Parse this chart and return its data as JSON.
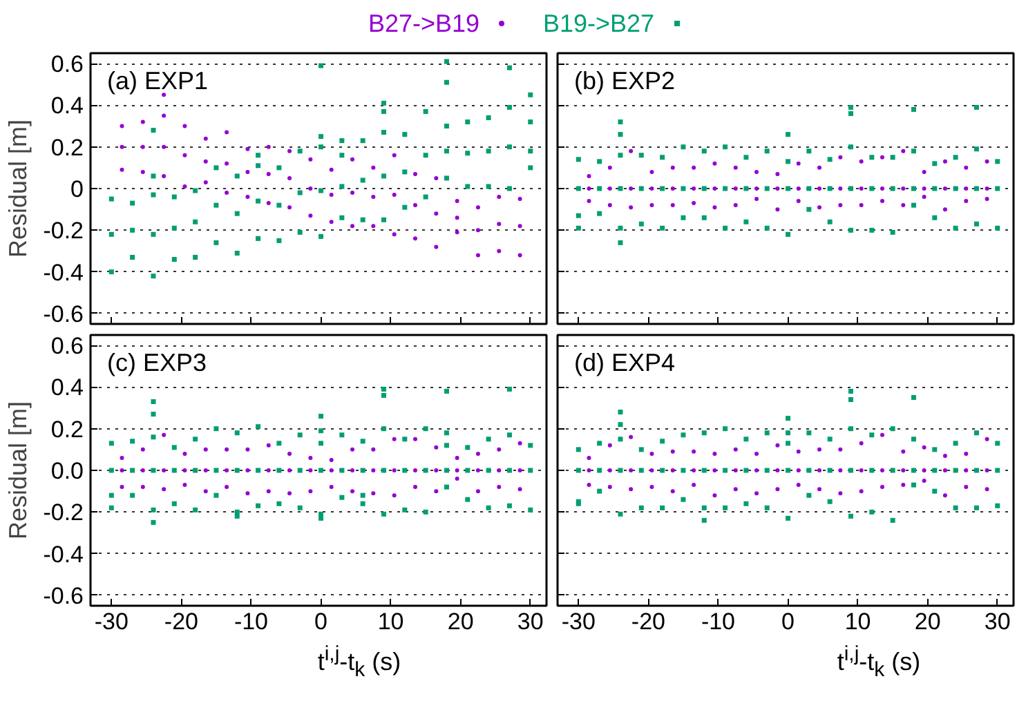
{
  "chart_data": [
    {
      "type": "scatter",
      "title": "(a) EXP1",
      "ylabel": "Residual [m]",
      "xlim": [
        -33,
        32.3
      ],
      "ylim": [
        -0.65,
        0.65
      ],
      "xticks": [
        -30,
        -20,
        -10,
        0,
        10,
        20,
        30
      ],
      "yticks": [
        -0.6,
        -0.4,
        -0.2,
        0,
        0.2,
        0.4,
        0.6
      ],
      "grid": "y",
      "legend": "top",
      "tick_labels": "y",
      "series": [
        {
          "name": "B27->B19",
          "color": "#9400d3",
          "marker": "circle",
          "x": [
            -28.5,
            -28.5,
            -28.5,
            -25.5,
            -25.5,
            -25.5,
            -22.5,
            -22.5,
            -22.5,
            -22.5,
            -19.5,
            -19.5,
            -19.5,
            -16.5,
            -16.5,
            -16.5,
            -13.5,
            -13.5,
            -13.5,
            -10.5,
            -10.5,
            -10.5,
            -7.5,
            -7.5,
            -7.5,
            -4.5,
            -4.5,
            -4.5,
            -1.5,
            -1.5,
            -1.5,
            1.5,
            1.5,
            1.5,
            4.5,
            4.5,
            4.5,
            7.5,
            7.5,
            7.5,
            10.5,
            10.5,
            10.5,
            13.5,
            13.5,
            13.5,
            16.5,
            16.5,
            16.5,
            19.5,
            19.5,
            19.5,
            22.5,
            22.5,
            22.5,
            25.5,
            25.5,
            25.5,
            28.5,
            28.5,
            28.5
          ],
          "values": [
            0.09,
            0.2,
            0.3,
            0.08,
            0.2,
            0.32,
            0.06,
            0.2,
            0.35,
            0.45,
            0.01,
            0.16,
            0.3,
            0.03,
            0.13,
            0.24,
            -0.02,
            0.12,
            0.27,
            -0.04,
            0.08,
            0.19,
            -0.07,
            0.07,
            0.2,
            -0.09,
            0.05,
            0.18,
            -0.13,
            0.0,
            0.14,
            -0.16,
            -0.03,
            0.09,
            -0.18,
            -0.02,
            0.14,
            -0.18,
            -0.04,
            0.1,
            -0.22,
            -0.03,
            0.16,
            -0.24,
            -0.08,
            0.07,
            -0.28,
            -0.12,
            0.05,
            -0.21,
            -0.14,
            -0.06,
            -0.32,
            -0.2,
            -0.09,
            -0.3,
            -0.17,
            -0.04,
            -0.32,
            -0.18,
            -0.05
          ]
        },
        {
          "name": "B19->B27",
          "color": "#009e73",
          "marker": "square",
          "x": [
            -30,
            -30,
            -30,
            -27,
            -27,
            -27,
            -24,
            -24,
            -24,
            -24,
            -24,
            -21,
            -21,
            -21,
            -18,
            -18,
            -18,
            -15,
            -15,
            -15,
            -12,
            -12,
            -12,
            -9,
            -9,
            -9,
            -9,
            -6,
            -6,
            -6,
            -3,
            -3,
            -3,
            0,
            0,
            0,
            0,
            0,
            3,
            3,
            3,
            3,
            6,
            6,
            6,
            9,
            9,
            9,
            9,
            9,
            12,
            12,
            12,
            15,
            15,
            15,
            18,
            18,
            18,
            18,
            18,
            21,
            21,
            21,
            24,
            24,
            24,
            27,
            27,
            27,
            27,
            30,
            30,
            30,
            30
          ],
          "values": [
            -0.4,
            -0.22,
            -0.05,
            -0.33,
            -0.2,
            -0.07,
            -0.42,
            -0.22,
            -0.03,
            0.28,
            0.06,
            -0.34,
            -0.19,
            -0.04,
            -0.33,
            -0.16,
            -0.01,
            -0.26,
            -0.08,
            0.1,
            -0.31,
            -0.12,
            0.06,
            -0.24,
            -0.06,
            0.11,
            0.16,
            -0.25,
            -0.08,
            0.1,
            -0.21,
            -0.02,
            0.18,
            -0.23,
            -0.01,
            0.2,
            0.59,
            0.25,
            -0.14,
            0.01,
            0.16,
            0.23,
            -0.15,
            0.04,
            0.23,
            -0.15,
            0.06,
            0.27,
            0.41,
            0.37,
            -0.09,
            0.08,
            0.26,
            -0.04,
            0.16,
            0.37,
            0.05,
            0.18,
            0.3,
            0.61,
            0.51,
            0.01,
            0.17,
            0.32,
            0.01,
            0.18,
            0.34,
            0.0,
            0.2,
            0.39,
            0.58,
            0.18,
            0.32,
            0.45,
            0.1
          ]
        }
      ]
    },
    {
      "type": "scatter",
      "title": "(b) EXP2",
      "xlim": [
        -33,
        32.3
      ],
      "ylim": [
        -0.65,
        0.65
      ],
      "xticks": [
        -30,
        -20,
        -10,
        0,
        10,
        20,
        30
      ],
      "yticks": [
        -0.6,
        -0.4,
        -0.2,
        0,
        0.2,
        0.4,
        0.6
      ],
      "grid": "y",
      "tick_labels": false,
      "series": [
        {
          "color": "#9400d3",
          "marker": "circle",
          "x": [
            -28.5,
            -28.5,
            -28.5,
            -25.5,
            -25.5,
            -25.5,
            -22.5,
            -22.5,
            -22.5,
            -19.5,
            -19.5,
            -19.5,
            -16.5,
            -16.5,
            -16.5,
            -13.5,
            -13.5,
            -13.5,
            -10.5,
            -10.5,
            -10.5,
            -7.5,
            -7.5,
            -7.5,
            -4.5,
            -4.5,
            -4.5,
            -1.5,
            -1.5,
            -1.5,
            1.5,
            1.5,
            1.5,
            4.5,
            4.5,
            4.5,
            7.5,
            7.5,
            7.5,
            10.5,
            10.5,
            10.5,
            13.5,
            13.5,
            13.5,
            16.5,
            16.5,
            16.5,
            19.5,
            19.5,
            19.5,
            22.5,
            22.5,
            22.5,
            25.5,
            25.5,
            25.5,
            28.5,
            28.5,
            28.5
          ],
          "values": [
            -0.06,
            0.0,
            0.06,
            -0.08,
            0.0,
            0.1,
            -0.09,
            0.0,
            0.18,
            -0.08,
            0.0,
            0.08,
            -0.08,
            0.0,
            0.1,
            -0.07,
            0.0,
            0.1,
            -0.09,
            0.0,
            0.12,
            -0.08,
            0.0,
            0.1,
            -0.05,
            0.0,
            0.08,
            -0.1,
            0.0,
            0.07,
            -0.06,
            0.0,
            0.12,
            -0.09,
            0.0,
            0.1,
            -0.08,
            0.0,
            0.15,
            -0.08,
            0.0,
            0.13,
            -0.06,
            0.0,
            0.15,
            -0.08,
            0.0,
            0.18,
            -0.04,
            0.0,
            0.08,
            -0.1,
            0.0,
            0.13,
            -0.06,
            0.0,
            0.1,
            -0.05,
            0.0,
            0.13
          ]
        },
        {
          "color": "#009e73",
          "marker": "square",
          "x": [
            -30,
            -30,
            -30,
            -30,
            -27,
            -27,
            -27,
            -24,
            -24,
            -24,
            -24,
            -24,
            -24,
            -21,
            -21,
            -21,
            -18,
            -18,
            -18,
            -15,
            -15,
            -15,
            -12,
            -12,
            -12,
            -9,
            -9,
            -9,
            -6,
            -6,
            -6,
            -3,
            -3,
            -3,
            0,
            0,
            0,
            0,
            3,
            3,
            3,
            6,
            6,
            6,
            9,
            9,
            9,
            9,
            9,
            12,
            12,
            12,
            15,
            15,
            15,
            18,
            18,
            18,
            18,
            21,
            21,
            21,
            24,
            24,
            24,
            27,
            27,
            27,
            27,
            30,
            30,
            30
          ],
          "values": [
            -0.19,
            -0.13,
            0.0,
            0.14,
            -0.12,
            0.0,
            0.13,
            -0.26,
            -0.19,
            0.0,
            0.16,
            0.32,
            0.26,
            -0.17,
            0.0,
            0.16,
            -0.19,
            0.0,
            0.15,
            -0.14,
            0.0,
            0.2,
            -0.14,
            0.0,
            0.18,
            -0.19,
            0.0,
            0.2,
            -0.16,
            0.0,
            0.15,
            -0.19,
            0.0,
            0.18,
            -0.22,
            0.0,
            0.13,
            0.26,
            -0.1,
            0.0,
            0.18,
            -0.16,
            0.0,
            0.14,
            -0.2,
            0.0,
            0.2,
            0.39,
            0.36,
            -0.2,
            0.0,
            0.15,
            -0.21,
            0.0,
            0.15,
            -0.08,
            0.0,
            0.18,
            0.38,
            -0.14,
            0.0,
            0.12,
            -0.19,
            0.0,
            0.15,
            -0.17,
            0.0,
            0.19,
            0.39,
            -0.19,
            0.0,
            0.13
          ]
        }
      ]
    },
    {
      "type": "scatter",
      "title": "(c) EXP3",
      "ylabel": "Residual [m]",
      "xlabel": "t$^{i,j}$-t$_{k}$ (s)",
      "xlim": [
        -33,
        32.3
      ],
      "ylim": [
        -0.65,
        0.65
      ],
      "xticks": [
        -30,
        -20,
        -10,
        0,
        10,
        20,
        30
      ],
      "yticks": [
        -0.6,
        -0.4,
        -0.2,
        {
          "value": 0,
          "label": "0.0"
        },
        0.2,
        0.4,
        0.6
      ],
      "grid": "y",
      "series": [
        {
          "color": "#9400d3",
          "marker": "circle",
          "x": [
            -28.5,
            -28.5,
            -28.5,
            -25.5,
            -25.5,
            -25.5,
            -22.5,
            -22.5,
            -22.5,
            -19.5,
            -19.5,
            -19.5,
            -16.5,
            -16.5,
            -16.5,
            -13.5,
            -13.5,
            -13.5,
            -10.5,
            -10.5,
            -10.5,
            -7.5,
            -7.5,
            -7.5,
            -4.5,
            -4.5,
            -4.5,
            -1.5,
            -1.5,
            -1.5,
            1.5,
            1.5,
            1.5,
            4.5,
            4.5,
            4.5,
            7.5,
            7.5,
            7.5,
            10.5,
            10.5,
            10.5,
            13.5,
            13.5,
            13.5,
            16.5,
            16.5,
            16.5,
            19.5,
            19.5,
            19.5,
            22.5,
            22.5,
            22.5,
            25.5,
            25.5,
            25.5,
            28.5,
            28.5,
            28.5
          ],
          "values": [
            -0.08,
            0.0,
            0.06,
            -0.08,
            0.0,
            0.1,
            -0.09,
            0.0,
            0.17,
            -0.07,
            0.0,
            0.08,
            -0.1,
            0.0,
            0.1,
            -0.08,
            0.0,
            0.1,
            -0.11,
            0.0,
            0.1,
            -0.1,
            0.0,
            0.12,
            -0.11,
            0.0,
            0.08,
            -0.1,
            0.0,
            0.06,
            -0.08,
            0.0,
            0.05,
            -0.1,
            0.0,
            0.1,
            -0.11,
            0.0,
            0.1,
            -0.12,
            0.0,
            0.15,
            -0.08,
            0.0,
            0.15,
            -0.1,
            0.0,
            0.11,
            -0.04,
            0.0,
            0.06,
            -0.1,
            0.0,
            0.08,
            -0.08,
            0.0,
            0.1,
            -0.09,
            0.0,
            0.13
          ]
        },
        {
          "color": "#009e73",
          "marker": "square",
          "x": [
            -30,
            -30,
            -30,
            -30,
            -27,
            -27,
            -27,
            -24,
            -24,
            -24,
            -24,
            -24,
            -24,
            -21,
            -21,
            -21,
            -18,
            -18,
            -18,
            -15,
            -15,
            -15,
            -12,
            -12,
            -12,
            -12,
            -9,
            -9,
            -9,
            -6,
            -6,
            -6,
            -3,
            -3,
            -3,
            0,
            0,
            0,
            0,
            0,
            0,
            3,
            3,
            3,
            6,
            6,
            6,
            6,
            9,
            9,
            9,
            9,
            9,
            12,
            12,
            12,
            15,
            15,
            15,
            18,
            18,
            18,
            18,
            18,
            21,
            21,
            21,
            24,
            24,
            24,
            27,
            27,
            27,
            27,
            30,
            30,
            30
          ],
          "values": [
            -0.18,
            -0.12,
            0.0,
            0.13,
            -0.12,
            0.0,
            0.14,
            -0.25,
            -0.19,
            0.0,
            0.16,
            0.33,
            0.27,
            -0.16,
            0.0,
            0.11,
            -0.19,
            0.0,
            0.15,
            -0.12,
            0.0,
            0.2,
            -0.22,
            -0.2,
            0.0,
            0.18,
            -0.17,
            0.0,
            0.21,
            -0.16,
            0.0,
            0.13,
            -0.18,
            0.0,
            0.17,
            -0.23,
            -0.21,
            0.0,
            0.13,
            0.26,
            0.19,
            -0.13,
            0.0,
            0.17,
            -0.16,
            -0.12,
            0.0,
            0.14,
            -0.21,
            0.0,
            0.2,
            0.39,
            0.36,
            -0.19,
            0.0,
            0.15,
            -0.2,
            0.0,
            0.2,
            -0.08,
            0.0,
            0.12,
            0.38,
            0.18,
            -0.14,
            0.0,
            0.11,
            -0.18,
            0.0,
            0.15,
            -0.17,
            0.0,
            0.17,
            0.39,
            -0.19,
            0.0,
            0.12
          ]
        }
      ]
    },
    {
      "type": "scatter",
      "title": "(d) EXP4",
      "xlabel": "t$^{i,j}$-t$_{k}$ (s)",
      "xlim": [
        -33,
        32.3
      ],
      "ylim": [
        -0.65,
        0.65
      ],
      "xticks": [
        -30,
        -20,
        -10,
        0,
        10,
        20,
        30
      ],
      "yticks": [
        -0.6,
        -0.4,
        -0.2,
        0,
        0.2,
        0.4,
        0.6
      ],
      "grid": "y",
      "tick_labels": "x",
      "series": [
        {
          "color": "#9400d3",
          "marker": "circle",
          "x": [
            -28.5,
            -28.5,
            -28.5,
            -25.5,
            -25.5,
            -25.5,
            -22.5,
            -22.5,
            -22.5,
            -19.5,
            -19.5,
            -19.5,
            -16.5,
            -16.5,
            -16.5,
            -13.5,
            -13.5,
            -13.5,
            -10.5,
            -10.5,
            -10.5,
            -7.5,
            -7.5,
            -7.5,
            -4.5,
            -4.5,
            -4.5,
            -1.5,
            -1.5,
            -1.5,
            1.5,
            1.5,
            1.5,
            4.5,
            4.5,
            4.5,
            7.5,
            7.5,
            7.5,
            10.5,
            10.5,
            10.5,
            13.5,
            13.5,
            13.5,
            16.5,
            16.5,
            16.5,
            19.5,
            19.5,
            19.5,
            22.5,
            22.5,
            22.5,
            25.5,
            25.5,
            25.5,
            28.5,
            28.5,
            28.5
          ],
          "values": [
            -0.07,
            0.0,
            0.06,
            -0.08,
            0.0,
            0.12,
            -0.09,
            0.0,
            0.16,
            -0.08,
            0.0,
            0.08,
            -0.1,
            0.0,
            0.09,
            -0.07,
            0.0,
            0.09,
            -0.12,
            0.0,
            0.08,
            -0.09,
            0.0,
            0.1,
            -0.11,
            0.0,
            0.08,
            -0.09,
            0.0,
            0.12,
            -0.07,
            0.0,
            0.09,
            -0.09,
            0.0,
            0.1,
            -0.11,
            0.0,
            0.1,
            -0.1,
            0.0,
            0.13,
            -0.08,
            0.0,
            0.17,
            -0.07,
            0.0,
            0.09,
            -0.05,
            0.0,
            0.11,
            -0.12,
            0.0,
            0.07,
            -0.08,
            0.0,
            0.08,
            -0.09,
            0.0,
            0.15
          ]
        },
        {
          "color": "#009e73",
          "marker": "square",
          "x": [
            -30,
            -30,
            -30,
            -30,
            -27,
            -27,
            -27,
            -24,
            -24,
            -24,
            -24,
            -24,
            -21,
            -21,
            -21,
            -18,
            -18,
            -18,
            -15,
            -15,
            -15,
            -12,
            -12,
            -12,
            -12,
            -9,
            -9,
            -9,
            -6,
            -6,
            -6,
            -3,
            -3,
            -3,
            0,
            0,
            0,
            0,
            0,
            3,
            3,
            3,
            6,
            6,
            6,
            9,
            9,
            9,
            9,
            9,
            12,
            12,
            12,
            15,
            15,
            15,
            18,
            18,
            18,
            18,
            21,
            21,
            21,
            24,
            24,
            24,
            27,
            27,
            27,
            30,
            30,
            30
          ],
          "values": [
            -0.16,
            -0.15,
            0.0,
            0.1,
            -0.1,
            0.0,
            0.13,
            -0.21,
            0.0,
            0.15,
            0.28,
            0.22,
            -0.18,
            0.0,
            0.1,
            -0.18,
            0.0,
            0.14,
            -0.14,
            0.0,
            0.17,
            -0.24,
            -0.18,
            0.0,
            0.18,
            -0.18,
            0.0,
            0.2,
            -0.16,
            0.0,
            0.15,
            -0.18,
            0.0,
            0.18,
            -0.23,
            0.0,
            0.13,
            0.25,
            0.18,
            -0.12,
            0.0,
            0.18,
            -0.15,
            0.0,
            0.15,
            -0.22,
            0.0,
            0.2,
            0.38,
            0.34,
            -0.2,
            0.0,
            0.17,
            -0.24,
            0.0,
            0.2,
            -0.07,
            0.0,
            0.15,
            0.35,
            -0.1,
            0.0,
            0.1,
            -0.18,
            0.0,
            0.13,
            -0.18,
            0.0,
            0.18,
            -0.17,
            0.0,
            0.13
          ]
        }
      ]
    }
  ]
}
